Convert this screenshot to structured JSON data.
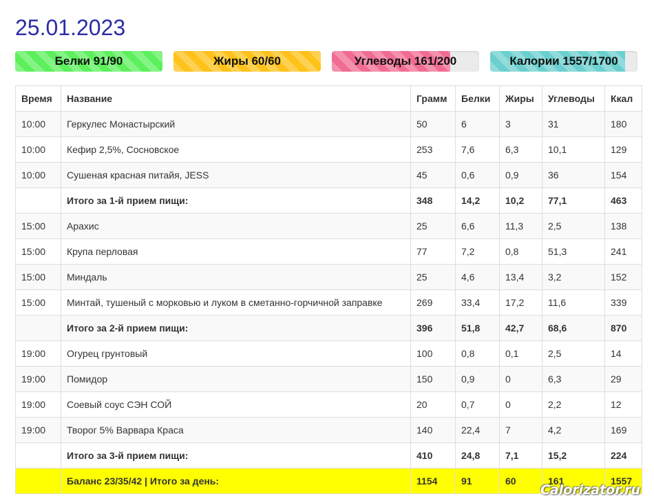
{
  "date": "25.01.2023",
  "progress": [
    {
      "label": "Белки 91/90",
      "fraction": 1.0,
      "color": "#5cf05c"
    },
    {
      "label": "Жиры 60/60",
      "fraction": 1.0,
      "color": "#ffc21a"
    },
    {
      "label": "Углеводы 161/200",
      "fraction": 0.805,
      "color": "#f06c92"
    },
    {
      "label": "Калории 1557/1700",
      "fraction": 0.916,
      "color": "#6ccfcf"
    }
  ],
  "table": {
    "headers": [
      "Время",
      "Название",
      "Грамм",
      "Белки",
      "Жиры",
      "Углеводы",
      "Ккал"
    ],
    "rows": [
      {
        "type": "item",
        "cells": [
          "10:00",
          "Геркулес Монастырский",
          "50",
          "6",
          "3",
          "31",
          "180"
        ]
      },
      {
        "type": "item",
        "cells": [
          "10:00",
          "Кефир 2,5%, Сосновское",
          "253",
          "7,6",
          "6,3",
          "10,1",
          "129"
        ]
      },
      {
        "type": "item",
        "cells": [
          "10:00",
          "Сушеная красная питайя, JESS",
          "45",
          "0,6",
          "0,9",
          "36",
          "154"
        ]
      },
      {
        "type": "subtotal",
        "cells": [
          "",
          "Итого за 1-й прием пищи:",
          "348",
          "14,2",
          "10,2",
          "77,1",
          "463"
        ]
      },
      {
        "type": "item",
        "cells": [
          "15:00",
          "Арахис",
          "25",
          "6,6",
          "11,3",
          "2,5",
          "138"
        ]
      },
      {
        "type": "item",
        "cells": [
          "15:00",
          "Крупа перловая",
          "77",
          "7,2",
          "0,8",
          "51,3",
          "241"
        ]
      },
      {
        "type": "item",
        "cells": [
          "15:00",
          "Миндаль",
          "25",
          "4,6",
          "13,4",
          "3,2",
          "152"
        ]
      },
      {
        "type": "item",
        "cells": [
          "15:00",
          "Минтай, тушеный с морковью и луком в сметанно-горчичной заправке",
          "269",
          "33,4",
          "17,2",
          "11,6",
          "339"
        ]
      },
      {
        "type": "subtotal",
        "cells": [
          "",
          "Итого за 2-й прием пищи:",
          "396",
          "51,8",
          "42,7",
          "68,6",
          "870"
        ]
      },
      {
        "type": "item",
        "cells": [
          "19:00",
          "Огурец грунтовый",
          "100",
          "0,8",
          "0,1",
          "2,5",
          "14"
        ]
      },
      {
        "type": "item",
        "cells": [
          "19:00",
          "Помидор",
          "150",
          "0,9",
          "0",
          "6,3",
          "29"
        ]
      },
      {
        "type": "item",
        "cells": [
          "19:00",
          "Соевый соус СЭН СОЙ",
          "20",
          "0,7",
          "0",
          "2,2",
          "12"
        ]
      },
      {
        "type": "item",
        "cells": [
          "19:00",
          "Творог 5% Варвара Краса",
          "140",
          "22,4",
          "7",
          "4,2",
          "169"
        ]
      },
      {
        "type": "subtotal",
        "cells": [
          "",
          "Итого за 3-й прием пищи:",
          "410",
          "24,8",
          "7,1",
          "15,2",
          "224"
        ]
      },
      {
        "type": "total",
        "cells": [
          "",
          "Баланс 23/35/42 | Итого за день:",
          "1154",
          "91",
          "60",
          "161",
          "1557"
        ]
      }
    ]
  },
  "watermark": "Calorizator.ru"
}
